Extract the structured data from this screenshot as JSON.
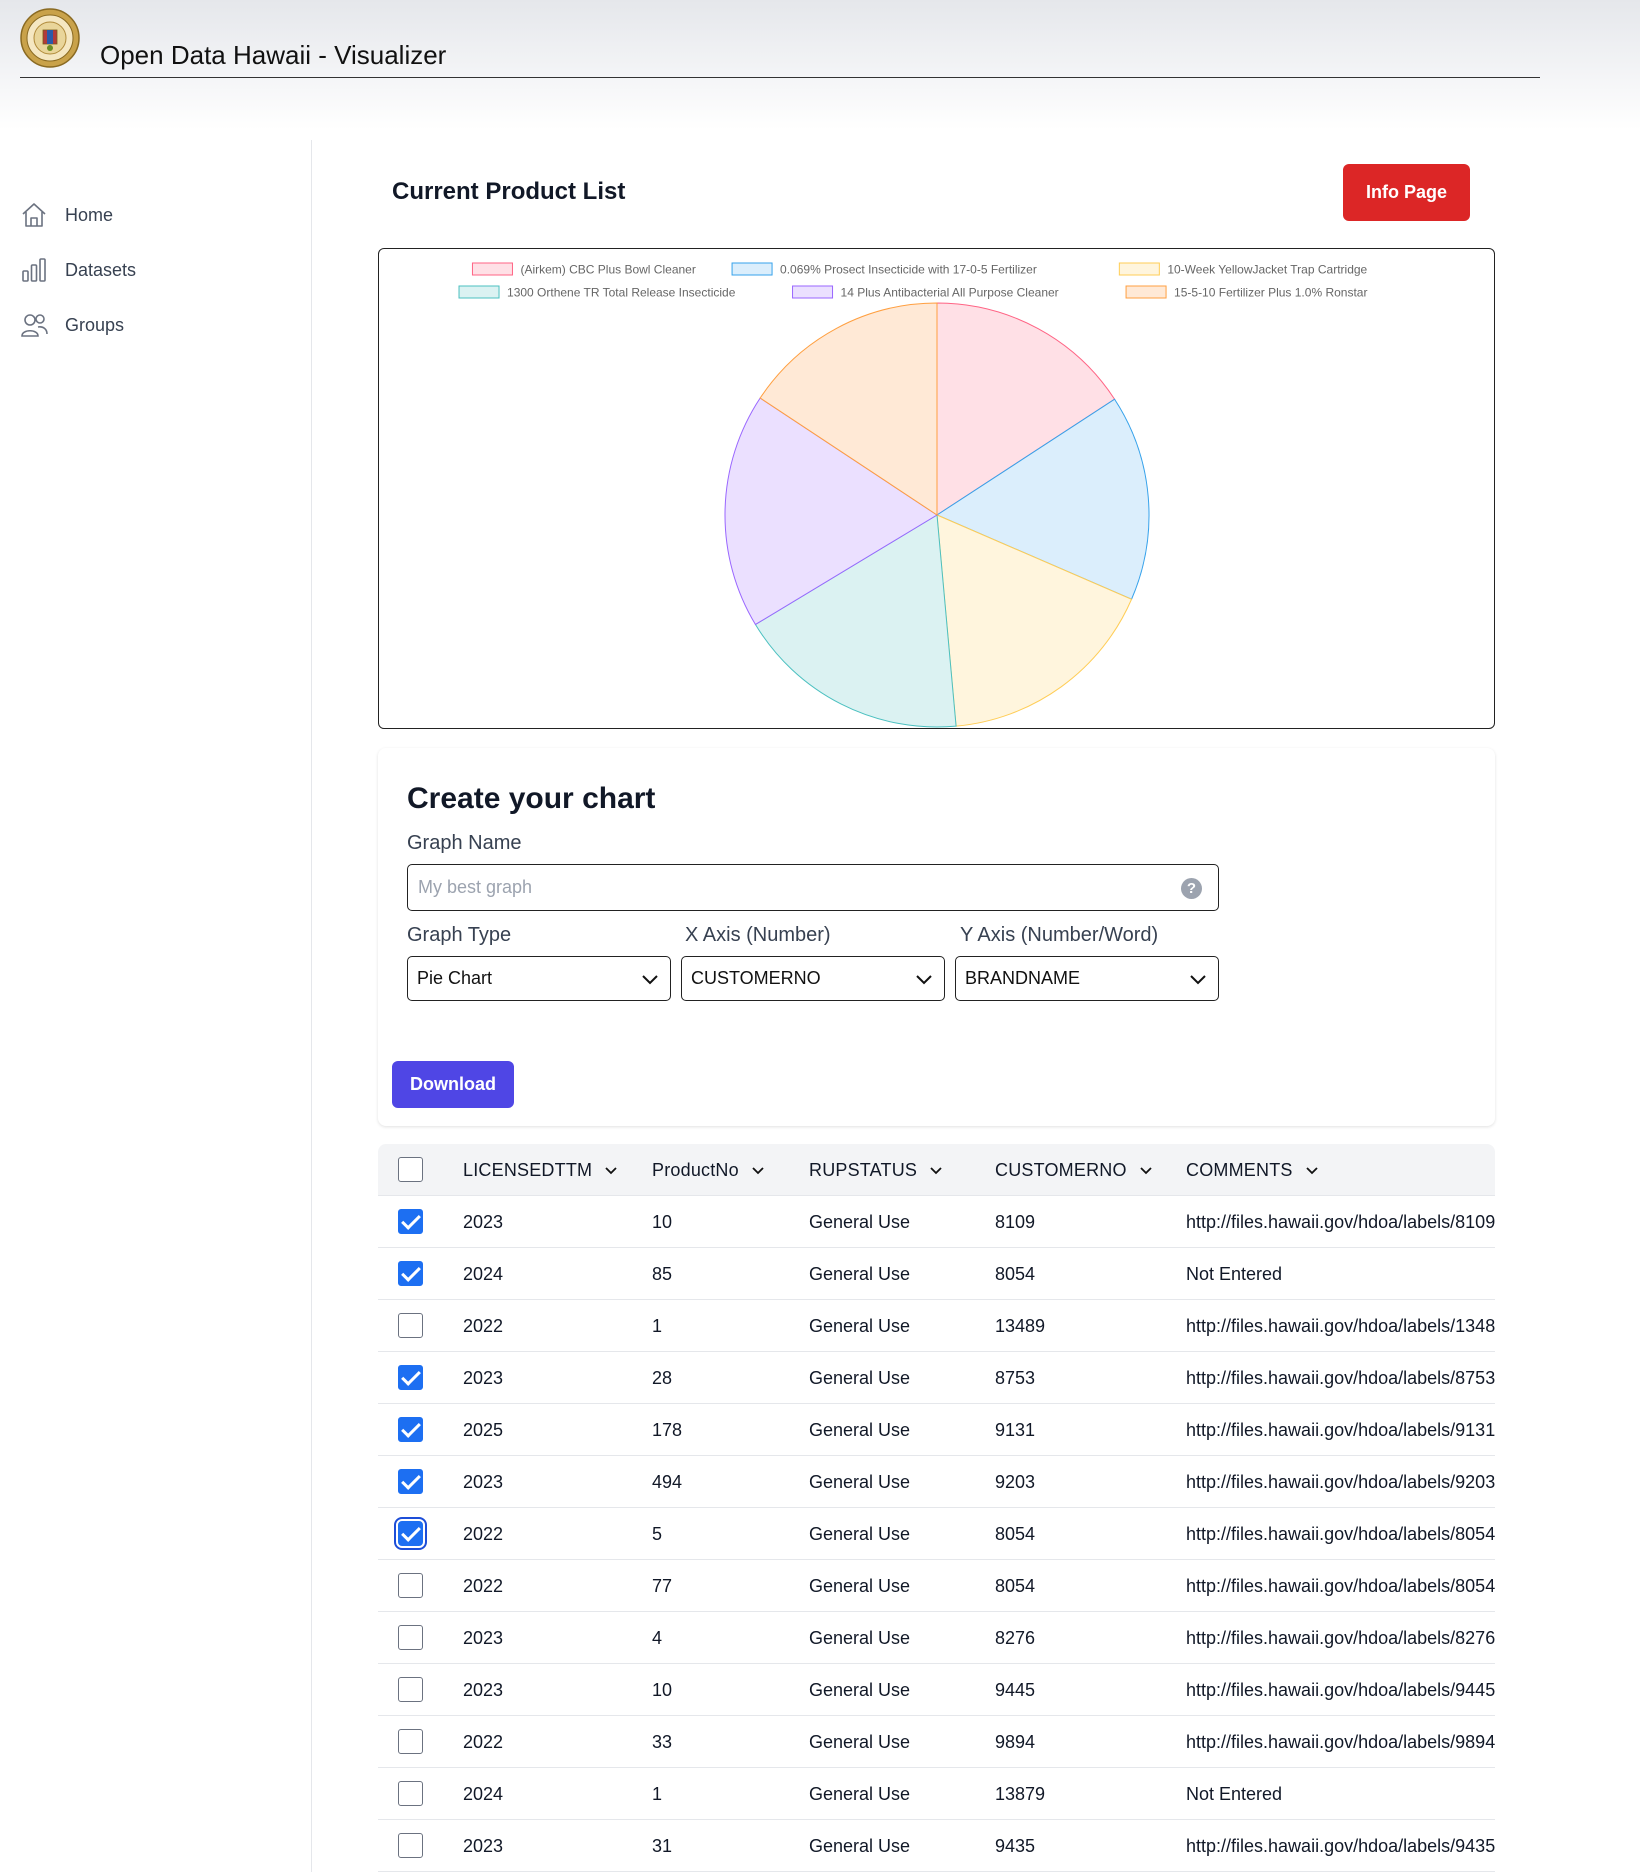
{
  "header": {
    "title": "Open Data Hawaii - Visualizer",
    "logo_icon": "state-seal-icon"
  },
  "sidebar": {
    "items": [
      {
        "label": "Home",
        "icon": "home-icon"
      },
      {
        "label": "Datasets",
        "icon": "bar-chart-icon"
      },
      {
        "label": "Groups",
        "icon": "users-icon"
      }
    ]
  },
  "main": {
    "title": "Current Product List",
    "info_button": "Info Page"
  },
  "chart_data": {
    "type": "pie",
    "categories": [
      "(Airkem) CBC Plus Bowl Cleaner",
      "0.069% Prosect Insecticide with 17-0-5 Fertilizer",
      "10-Week YellowJacket Trap Cartridge",
      "1300 Orthene TR Total Release Insecticide",
      "14 Plus Antibacterial All Purpose Cleaner",
      "15-5-10 Fertilizer Plus 1.0% Ronstar"
    ],
    "values": [
      8109,
      8054,
      8753,
      9131,
      9203,
      8054
    ],
    "colors": {
      "fill": [
        "#ffe0e6",
        "#dbeefc",
        "#fff5dd",
        "#dbf2f2",
        "#ebe0ff",
        "#ffe9d6"
      ],
      "stroke": [
        "#ff6384",
        "#36a2eb",
        "#ffcd56",
        "#4bc0c0",
        "#9966ff",
        "#ff9f40"
      ]
    },
    "legend": "top"
  },
  "form": {
    "heading": "Create your chart",
    "graph_name_label": "Graph Name",
    "graph_name_placeholder": "My best graph",
    "graph_type_label": "Graph Type",
    "graph_type_value": "Pie Chart",
    "x_axis_label": "X Axis (Number)",
    "x_axis_value": "CUSTOMERNO",
    "y_axis_label": "Y Axis (Number/Word)",
    "y_axis_value": "BRANDNAME",
    "download_label": "Download"
  },
  "table": {
    "columns": [
      "LICENSEDTTM",
      "ProductNo",
      "RUPSTATUS",
      "CUSTOMERNO",
      "COMMENTS"
    ],
    "rows": [
      {
        "checked": true,
        "licensedttm": "2023",
        "productno": "10",
        "rupstatus": "General Use",
        "customerno": "8109",
        "comments": "http://files.hawaii.gov/hdoa/labels/8109"
      },
      {
        "checked": true,
        "licensedttm": "2024",
        "productno": "85",
        "rupstatus": "General Use",
        "customerno": "8054",
        "comments": "Not Entered"
      },
      {
        "checked": false,
        "licensedttm": "2022",
        "productno": "1",
        "rupstatus": "General Use",
        "customerno": "13489",
        "comments": "http://files.hawaii.gov/hdoa/labels/1348"
      },
      {
        "checked": true,
        "licensedttm": "2023",
        "productno": "28",
        "rupstatus": "General Use",
        "customerno": "8753",
        "comments": "http://files.hawaii.gov/hdoa/labels/8753"
      },
      {
        "checked": true,
        "licensedttm": "2025",
        "productno": "178",
        "rupstatus": "General Use",
        "customerno": "9131",
        "comments": "http://files.hawaii.gov/hdoa/labels/9131"
      },
      {
        "checked": true,
        "licensedttm": "2023",
        "productno": "494",
        "rupstatus": "General Use",
        "customerno": "9203",
        "comments": "http://files.hawaii.gov/hdoa/labels/9203"
      },
      {
        "checked": true,
        "licensedttm": "2022",
        "productno": "5",
        "rupstatus": "General Use",
        "customerno": "8054",
        "comments": "http://files.hawaii.gov/hdoa/labels/8054"
      },
      {
        "checked": false,
        "licensedttm": "2022",
        "productno": "77",
        "rupstatus": "General Use",
        "customerno": "8054",
        "comments": "http://files.hawaii.gov/hdoa/labels/8054"
      },
      {
        "checked": false,
        "licensedttm": "2023",
        "productno": "4",
        "rupstatus": "General Use",
        "customerno": "8276",
        "comments": "http://files.hawaii.gov/hdoa/labels/8276"
      },
      {
        "checked": false,
        "licensedttm": "2023",
        "productno": "10",
        "rupstatus": "General Use",
        "customerno": "9445",
        "comments": "http://files.hawaii.gov/hdoa/labels/9445"
      },
      {
        "checked": false,
        "licensedttm": "2022",
        "productno": "33",
        "rupstatus": "General Use",
        "customerno": "9894",
        "comments": "http://files.hawaii.gov/hdoa/labels/9894"
      },
      {
        "checked": false,
        "licensedttm": "2024",
        "productno": "1",
        "rupstatus": "General Use",
        "customerno": "13879",
        "comments": "Not Entered"
      },
      {
        "checked": false,
        "licensedttm": "2023",
        "productno": "31",
        "rupstatus": "General Use",
        "customerno": "9435",
        "comments": "http://files.hawaii.gov/hdoa/labels/9435"
      }
    ]
  }
}
